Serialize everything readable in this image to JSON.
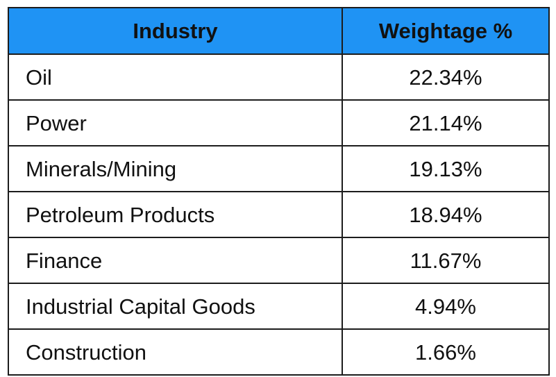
{
  "chart_data": {
    "type": "table",
    "columns": [
      "Industry",
      "Weightage %"
    ],
    "rows": [
      {
        "industry": "Oil",
        "weightage": "22.34%"
      },
      {
        "industry": "Power",
        "weightage": "21.14%"
      },
      {
        "industry": "Minerals/Mining",
        "weightage": "19.13%"
      },
      {
        "industry": "Petroleum Products",
        "weightage": "18.94%"
      },
      {
        "industry": "Finance",
        "weightage": "11.67%"
      },
      {
        "industry": "Industrial Capital Goods",
        "weightage": "4.94%"
      },
      {
        "industry": "Construction",
        "weightage": "1.66%"
      }
    ],
    "values": [
      22.34,
      21.14,
      19.13,
      18.94,
      11.67,
      4.94,
      1.66
    ]
  },
  "colors": {
    "header_bg": "#1f93f4",
    "border": "#1c1c1c",
    "text": "#111111"
  }
}
